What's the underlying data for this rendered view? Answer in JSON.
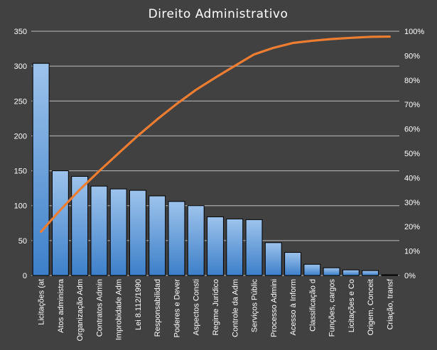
{
  "chart_data": {
    "type": "bar",
    "title": "Direito  Administrativo",
    "xlabel": "",
    "ylabel": "",
    "ylim": [
      0,
      350
    ],
    "yticks": [
      0,
      50,
      100,
      150,
      200,
      250,
      300,
      350
    ],
    "y2lim": [
      0,
      100
    ],
    "y2ticks": [
      "0%",
      "10%",
      "20%",
      "30%",
      "40%",
      "50%",
      "60%",
      "70%",
      "80%",
      "90%",
      "100%"
    ],
    "grid": true,
    "categories": [
      "Licitações (at",
      "Atos administra",
      "Organização Adm",
      "Contratos Admin",
      "Improbidade Adm",
      "Lei 8.112/1990",
      "Responsabilidad",
      "Poderes e Dever",
      "Aspectos Consti",
      "Regime Jurídico",
      "Controle da Adm",
      "Serviços Públic",
      "Processo Admini",
      "Acesso à Inform",
      "Classificação d",
      "Funções, cargos",
      "Licitações e Co",
      "Origem, Conceit",
      "Criação, transf"
    ],
    "series": [
      {
        "type": "bar",
        "axis": "left",
        "values": [
          304,
          150,
          142,
          128,
          124,
          122,
          114,
          106,
          100,
          84,
          81,
          80,
          47,
          33,
          16,
          11,
          8,
          7,
          1
        ]
      },
      {
        "type": "line",
        "axis": "right",
        "values": [
          17.9,
          26.8,
          35.1,
          42.7,
          50.0,
          57.2,
          63.9,
          70.2,
          76.0,
          81.0,
          85.8,
          90.5,
          93.2,
          95.2,
          96.1,
          96.8,
          97.3,
          97.7,
          97.8
        ]
      }
    ],
    "colors": {
      "background": "#414141",
      "gridline": "#bfbfbf",
      "bar_fill_top": "#9dc3ec",
      "bar_fill_bottom": "#3c7fc9",
      "bar_border": "#000000",
      "line": "#ed7d31",
      "text": "#ffffff"
    },
    "legend": "none"
  }
}
